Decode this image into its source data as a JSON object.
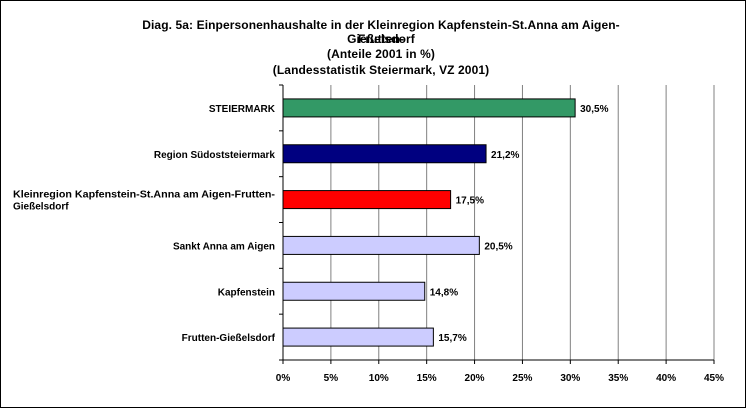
{
  "chart_data": {
    "type": "bar",
    "orientation": "horizontal",
    "title_lines": [
      "Diag. 5a: Einpersonenhaushalte  in der Kleinregion Kapfenstein-St.Anna  am Aigen-Frutten-",
      "Gießelsdorf",
      "(Anteile 2001 in %)",
      "(Landesstatistik  Steiermark,  VZ 2001)"
    ],
    "categories": [
      "STEIERMARK",
      "Region Südoststeiermark",
      "Kleinregion Kapfenstein-St.Anna am Aigen-Frutten-Gießelsdorf",
      "Sankt Anna am Aigen",
      "Kapfenstein",
      "Frutten-Gießelsdorf"
    ],
    "category_label_lines": [
      [
        "STEIERMARK"
      ],
      [
        "Region Südoststeiermark"
      ],
      [
        "Kleinregion Kapfenstein-St.Anna am Aigen-Frutten-",
        "Gießelsdorf"
      ],
      [
        "Sankt Anna am Aigen"
      ],
      [
        "Kapfenstein"
      ],
      [
        "Frutten-Gießelsdorf"
      ]
    ],
    "values": [
      30.5,
      21.2,
      17.5,
      20.5,
      14.8,
      15.7
    ],
    "value_labels": [
      "30,5%",
      "21,2%",
      "17,5%",
      "20,5%",
      "14,8%",
      "15,7%"
    ],
    "bar_colors": [
      "#339966",
      "#000080",
      "#ff0000",
      "#ccccff",
      "#ccccff",
      "#ccccff"
    ],
    "xlim": [
      0,
      45
    ],
    "x_ticks": [
      0,
      5,
      10,
      15,
      20,
      25,
      30,
      35,
      40,
      45
    ],
    "x_tick_labels": [
      "0%",
      "5%",
      "10%",
      "15%",
      "20%",
      "25%",
      "30%",
      "35%",
      "40%",
      "45%"
    ],
    "grid": "vertical",
    "legend": "none"
  }
}
